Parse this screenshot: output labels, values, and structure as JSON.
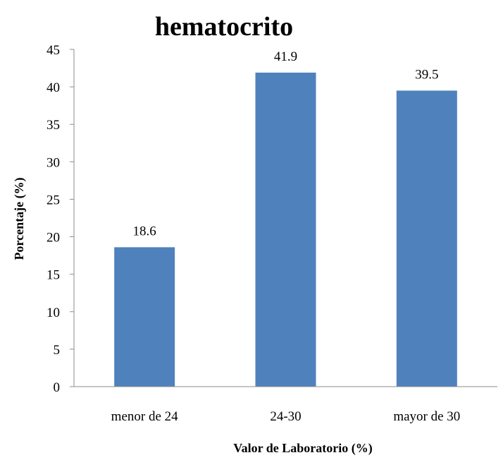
{
  "chart_data": {
    "type": "bar",
    "title": "hematocrito",
    "xlabel": "Valor de Laboratorio (%)",
    "ylabel": "Porcentaje (%)",
    "categories": [
      "menor de 24",
      "24-30",
      "mayor de 30"
    ],
    "values": [
      18.6,
      41.9,
      39.5
    ],
    "data_labels": [
      "18.6",
      "41.9",
      "39.5"
    ],
    "ylim": [
      0,
      45
    ],
    "yticks": [
      0,
      5,
      10,
      15,
      20,
      25,
      30,
      35,
      40,
      45
    ],
    "grid": false,
    "legend": "none",
    "colors": {
      "bar": "#4f81bd",
      "axis": "#8c8c8c",
      "text": "#000000"
    }
  }
}
